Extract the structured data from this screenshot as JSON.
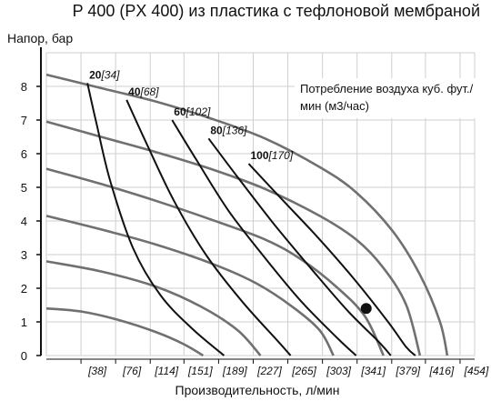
{
  "title": "P 400 (PX 400) из пластика с тефлоновой мембраной",
  "chart_data": {
    "type": "line",
    "title": "P 400 (PX 400) из пластика с тефлоновой мембраной",
    "ylabel": "Напор, бар",
    "xlabel": "Производительность, л/мин",
    "x_ticks": [
      "[38]",
      "[76]",
      "[114]",
      "[151]",
      "[189]",
      "[227]",
      "[265]",
      "[303]",
      "[341]",
      "[379]",
      "[416]",
      "[454]"
    ],
    "x_tick_values": [
      38,
      76,
      114,
      151,
      189,
      227,
      265,
      303,
      341,
      379,
      416,
      454
    ],
    "xlim": [
      0,
      470
    ],
    "y_ticks": [
      "0",
      "1",
      "2",
      "3",
      "4",
      "5",
      "6",
      "7",
      "8"
    ],
    "ylim": [
      0,
      9
    ],
    "grid": true,
    "legend_text": "Потребление воздуха куб. фут./мин (м3/час)",
    "air_labels": [
      {
        "value": "20",
        "bracket": "[34]"
      },
      {
        "value": "40",
        "bracket": "[68]"
      },
      {
        "value": "60",
        "bracket": "[102]"
      },
      {
        "value": "80",
        "bracket": "[136]"
      },
      {
        "value": "100",
        "bracket": "[170]"
      }
    ],
    "pressure_curves": [
      {
        "points": [
          [
            0,
            8.35
          ],
          [
            60,
            7.95
          ],
          [
            120,
            7.55
          ],
          [
            180,
            7.05
          ],
          [
            240,
            6.45
          ],
          [
            300,
            5.6
          ],
          [
            340,
            4.85
          ],
          [
            380,
            3.7
          ],
          [
            410,
            2.4
          ],
          [
            432,
            1.0
          ],
          [
            440,
            0
          ]
        ]
      },
      {
        "points": [
          [
            0,
            6.95
          ],
          [
            60,
            6.5
          ],
          [
            120,
            6.05
          ],
          [
            180,
            5.55
          ],
          [
            240,
            4.95
          ],
          [
            300,
            4.15
          ],
          [
            340,
            3.45
          ],
          [
            370,
            2.6
          ],
          [
            395,
            1.5
          ],
          [
            410,
            0
          ]
        ]
      },
      {
        "points": [
          [
            0,
            5.55
          ],
          [
            60,
            5.1
          ],
          [
            120,
            4.6
          ],
          [
            180,
            4.05
          ],
          [
            240,
            3.45
          ],
          [
            280,
            2.85
          ],
          [
            320,
            2.0
          ],
          [
            350,
            1.15
          ],
          [
            370,
            0
          ]
        ]
      },
      {
        "points": [
          [
            0,
            4.15
          ],
          [
            60,
            3.75
          ],
          [
            120,
            3.3
          ],
          [
            180,
            2.75
          ],
          [
            230,
            2.15
          ],
          [
            270,
            1.45
          ],
          [
            300,
            0.75
          ],
          [
            315,
            0
          ]
        ]
      },
      {
        "points": [
          [
            0,
            2.8
          ],
          [
            60,
            2.5
          ],
          [
            120,
            2.05
          ],
          [
            170,
            1.45
          ],
          [
            210,
            0.75
          ],
          [
            235,
            0
          ]
        ]
      },
      {
        "points": [
          [
            0,
            1.4
          ],
          [
            40,
            1.3
          ],
          [
            80,
            1.05
          ],
          [
            120,
            0.7
          ],
          [
            150,
            0.35
          ],
          [
            172,
            0
          ]
        ]
      }
    ],
    "air_curves": [
      {
        "name": "20",
        "points": [
          [
            45,
            8.1
          ],
          [
            55,
            6.9
          ],
          [
            70,
            5.2
          ],
          [
            95,
            3.2
          ],
          [
            125,
            1.8
          ],
          [
            160,
            0.8
          ],
          [
            195,
            0
          ]
        ]
      },
      {
        "name": "40",
        "points": [
          [
            88,
            7.6
          ],
          [
            110,
            6.3
          ],
          [
            140,
            4.6
          ],
          [
            175,
            3.0
          ],
          [
            215,
            1.6
          ],
          [
            255,
            0.4
          ],
          [
            268,
            0
          ]
        ]
      },
      {
        "name": "60",
        "points": [
          [
            138,
            7.0
          ],
          [
            165,
            5.8
          ],
          [
            200,
            4.3
          ],
          [
            240,
            2.9
          ],
          [
            280,
            1.6
          ],
          [
            320,
            0.5
          ],
          [
            340,
            0
          ]
        ]
      },
      {
        "name": "80",
        "points": [
          [
            178,
            6.45
          ],
          [
            210,
            5.3
          ],
          [
            250,
            3.9
          ],
          [
            290,
            2.6
          ],
          [
            330,
            1.35
          ],
          [
            365,
            0.4
          ],
          [
            378,
            0
          ]
        ]
      },
      {
        "name": "100",
        "points": [
          [
            222,
            5.7
          ],
          [
            260,
            4.6
          ],
          [
            300,
            3.45
          ],
          [
            340,
            2.2
          ],
          [
            375,
            1.0
          ],
          [
            395,
            0.25
          ],
          [
            405,
            0
          ]
        ]
      }
    ],
    "marker_point": {
      "x": 351,
      "y": 1.4
    }
  },
  "colors": {
    "pressure_curve": "#707070",
    "air_curve": "#111111",
    "grid": "#cfcfcf",
    "axis": "#111111"
  }
}
